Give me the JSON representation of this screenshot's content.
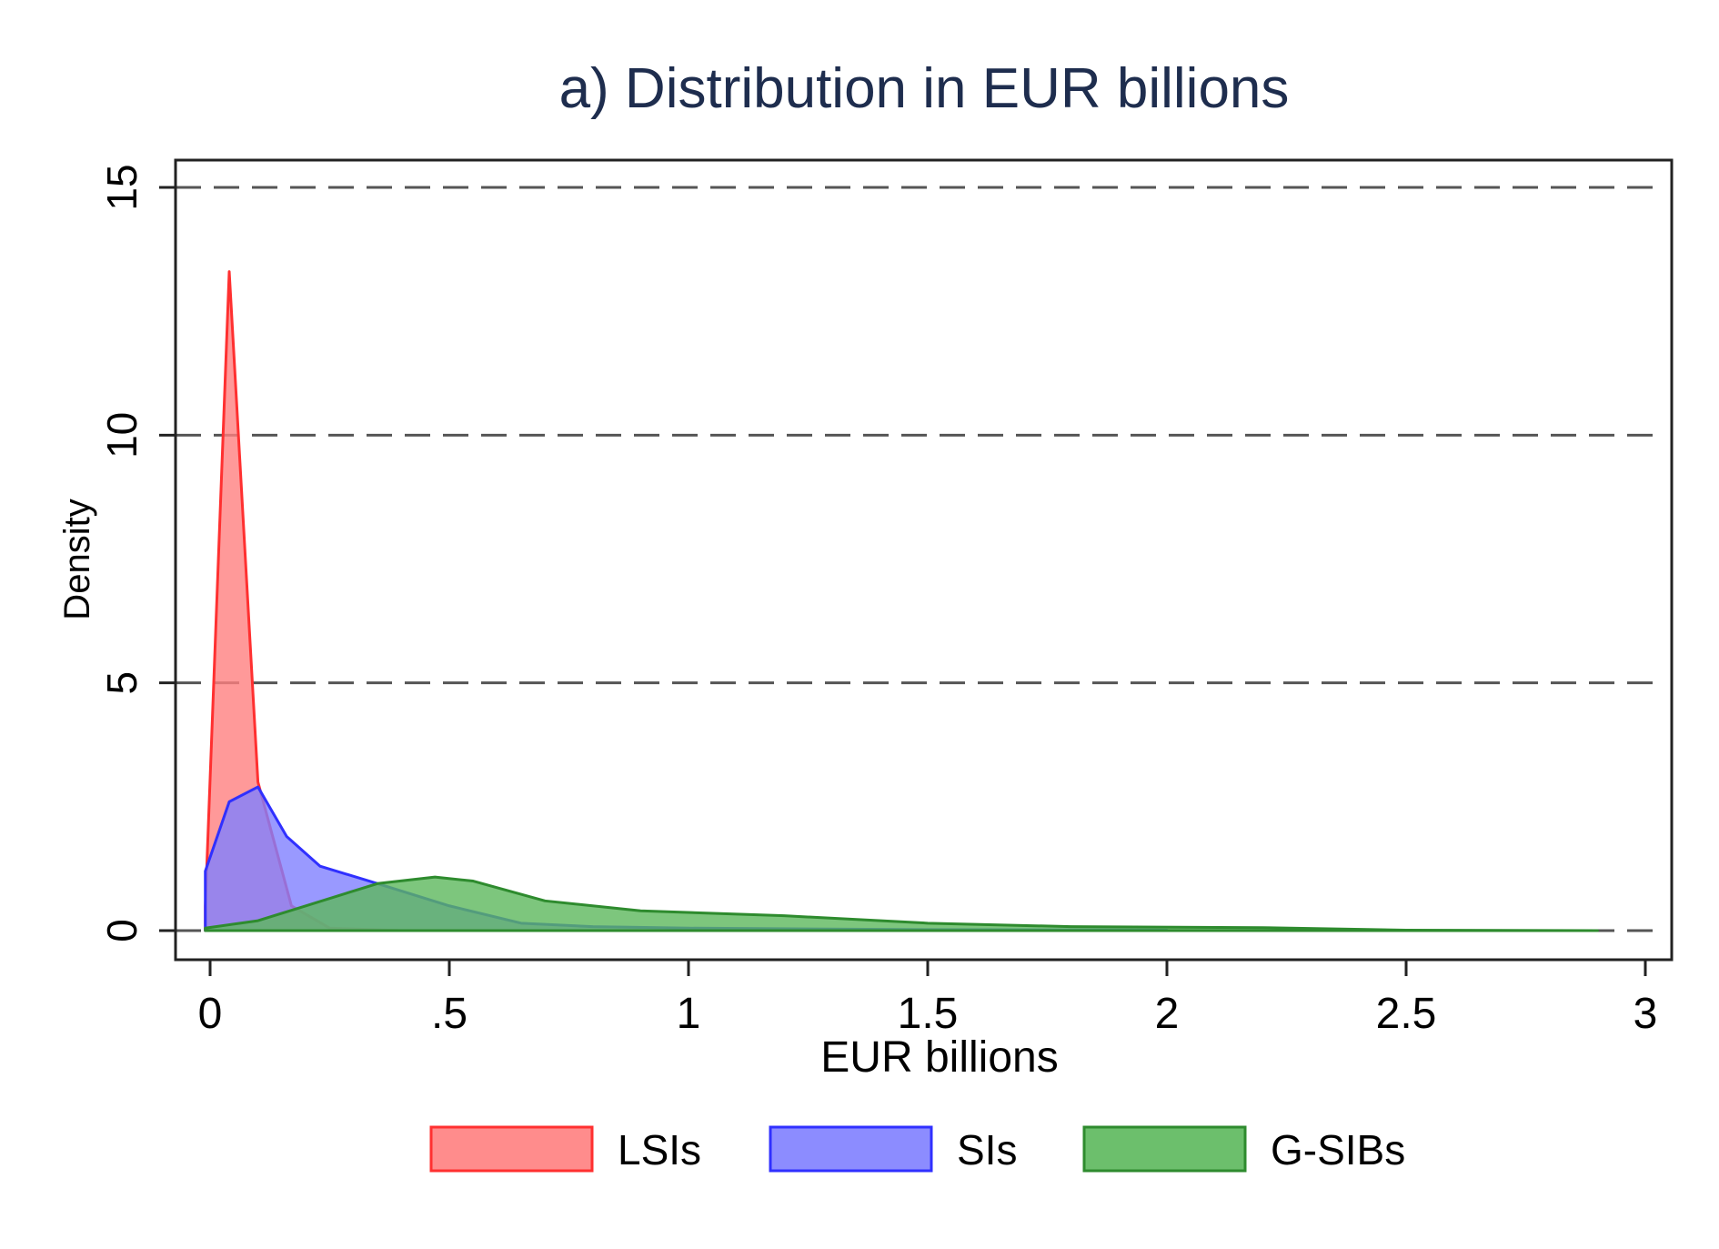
{
  "chart_data": {
    "type": "area",
    "title": "a) Distribution in EUR billions",
    "xlabel": "EUR billions",
    "ylabel": "Density",
    "xlim": [
      -0.07,
      3.05
    ],
    "ylim": [
      -1.0,
      15.5
    ],
    "xticks": [
      0,
      0.5,
      1,
      1.5,
      2,
      2.5,
      3
    ],
    "xtick_labels": [
      "0",
      ".5",
      "1",
      "1.5",
      "2",
      "2.5",
      "3"
    ],
    "yticks": [
      0,
      5,
      10,
      15
    ],
    "ytick_labels": [
      "0",
      "5",
      "10",
      "15"
    ],
    "grid": "horizontal dashed",
    "legend_placement": "bottom",
    "series": [
      {
        "name": "LSIs",
        "fill": "#ff8080",
        "stroke": "#ff3030",
        "x": [
          -0.01,
          0.04,
          0.1,
          0.17,
          0.25,
          0.4
        ],
        "y": [
          0.5,
          13.3,
          3.0,
          0.5,
          0.05,
          0.0
        ]
      },
      {
        "name": "SIs",
        "fill": "#8080ff",
        "stroke": "#3030ff",
        "x": [
          -0.01,
          0.04,
          0.1,
          0.16,
          0.23,
          0.35,
          0.5,
          0.65,
          0.8,
          1.0,
          1.5,
          2.0
        ],
        "y": [
          1.2,
          2.6,
          2.9,
          1.9,
          1.3,
          0.95,
          0.5,
          0.15,
          0.08,
          0.05,
          0.02,
          0.01
        ]
      },
      {
        "name": "G-SIBs",
        "fill": "#5cb85c",
        "stroke": "#2e8b2e",
        "x": [
          -0.01,
          0.1,
          0.2,
          0.35,
          0.47,
          0.55,
          0.7,
          0.9,
          1.2,
          1.5,
          1.8,
          2.2,
          2.5,
          2.9
        ],
        "y": [
          0.05,
          0.2,
          0.5,
          0.95,
          1.08,
          1.0,
          0.6,
          0.4,
          0.3,
          0.15,
          0.08,
          0.06,
          0.01,
          0.0
        ]
      }
    ]
  }
}
